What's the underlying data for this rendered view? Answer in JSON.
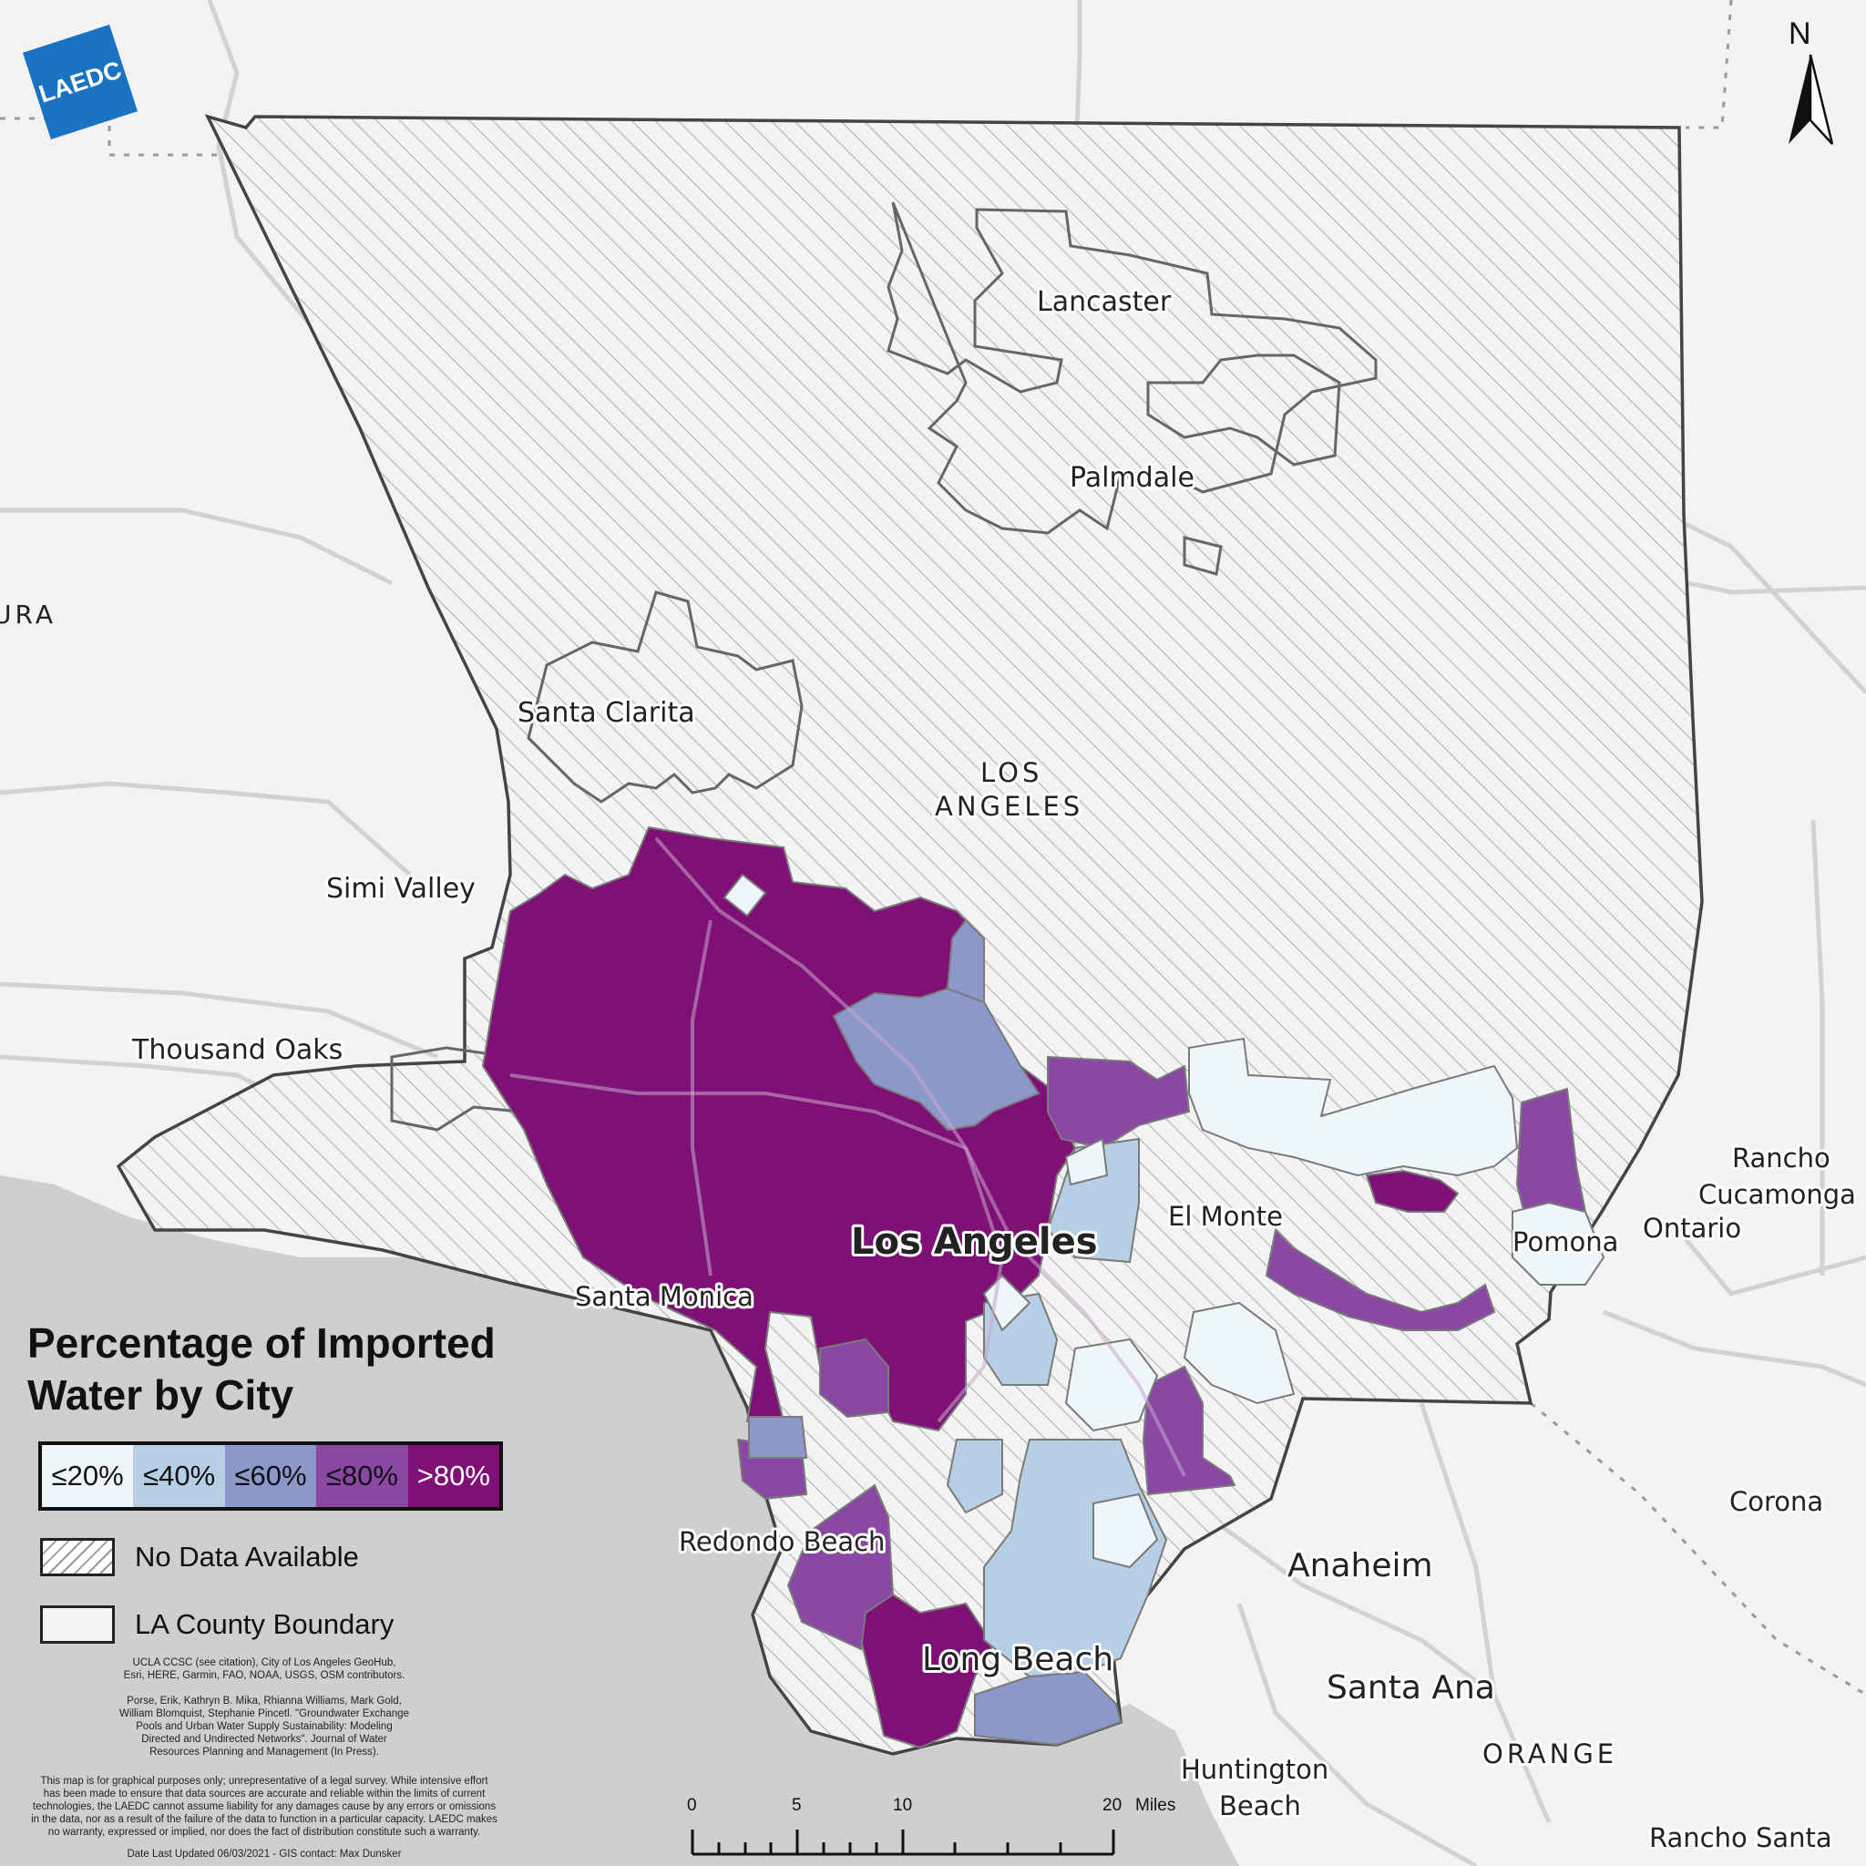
{
  "logo": {
    "text": "LAEDC"
  },
  "north_label": "N",
  "places": {
    "lancaster": "Lancaster",
    "palmdale": "Palmdale",
    "santa_clarita": "Santa Clarita",
    "los_angeles_county_1": "LOS",
    "los_angeles_county_2": "ANGELES",
    "simi_valley": "Simi Valley",
    "thousand_oaks": "Thousand Oaks",
    "ventura_fragment": "URA",
    "los_angeles_city": "Los Angeles",
    "el_monte": "El Monte",
    "pomona": "Pomona",
    "ontario": "Ontario",
    "rancho_cucamonga_1": "Rancho",
    "rancho_cucamonga_2": "Cucamonga",
    "santa_monica": "Santa Monica",
    "redondo_beach": "Redondo Beach",
    "long_beach": "Long Beach",
    "anaheim": "Anaheim",
    "santa_ana": "Santa Ana",
    "huntington_beach_1": "Huntington",
    "huntington_beach_2": "Beach",
    "orange_county": "ORANGE",
    "corona": "Corona",
    "rancho_santa": "Rancho Santa"
  },
  "legend": {
    "title_line1": "Percentage of Imported",
    "title_line2": "Water by City",
    "classes": [
      {
        "label": "≤20%",
        "color": "#eef6f9",
        "text_color": "#111111"
      },
      {
        "label": "≤40%",
        "color": "#b6cfe4",
        "text_color": "#111111"
      },
      {
        "label": "≤60%",
        "color": "#8c98c9",
        "text_color": "#111111"
      },
      {
        "label": "≤80%",
        "color": "#8a48a4",
        "text_color": "#111111"
      },
      {
        "label": ">80%",
        "color": "#7f1176",
        "text_color": "#ffffff"
      }
    ],
    "no_data": "No Data Available",
    "boundary": "LA County Boundary"
  },
  "credits": {
    "sources_1": "UCLA CCSC (see citation), City of Los Angeles GeoHub,",
    "sources_2": "Esri, HERE, Garmin, FAO, NOAA, USGS, OSM contributors.",
    "citation_1": "Porse, Erik, Kathryn B. Mika, Rhianna Williams, Mark Gold,",
    "citation_2": "William Blomquist, Stephanie Pincetl. \"Groundwater Exchange",
    "citation_3": "Pools and Urban Water Supply Sustainability: Modeling",
    "citation_4": "Directed and Undirected Networks\". Journal of Water",
    "citation_5": "Resources Planning and Management (In Press).",
    "disclaimer_1": "This map is for graphical purposes only; unrepresentative of a legal survey. While intensive effort",
    "disclaimer_2": "has been made to ensure that data sources are accurate and reliable within the limits of current",
    "disclaimer_3": "technologies, the LAEDC cannot assume liability for any damages cause by any errors or omissions",
    "disclaimer_4": "in the data, nor as a result of the failure of the data to function in a particular capacity. LAEDC makes",
    "disclaimer_5": "no warranty, expressed or implied, nor does the fact of distribution constitute such a warranty.",
    "updated": "Date Last Updated 06/03/2021 - GIS contact: Max Dunsker"
  },
  "scale": {
    "t0": "0",
    "t5": "5",
    "t10": "10",
    "t20": "20",
    "unit": "Miles"
  },
  "colors": {
    "ocean": "#cfcfcf",
    "land": "#f3f3f3",
    "hatch": "#b8b8b8",
    "boundary": "#444444",
    "road": "#d2d2d2"
  }
}
